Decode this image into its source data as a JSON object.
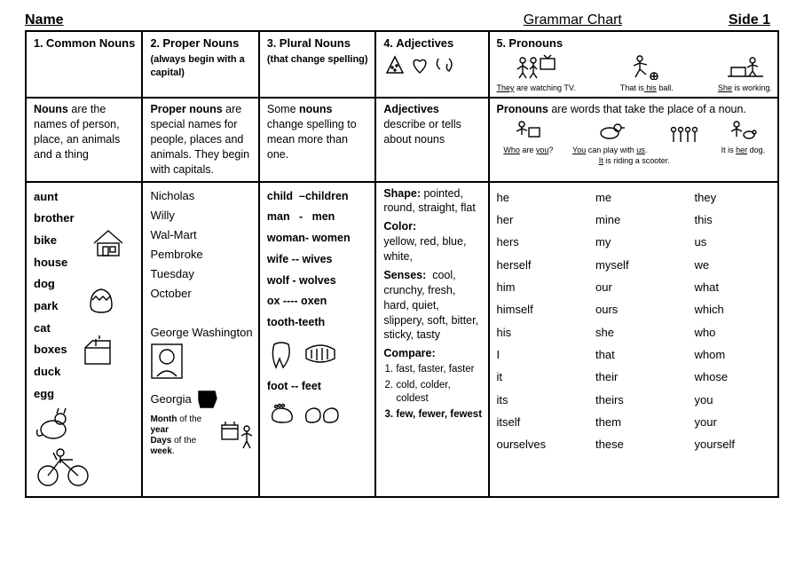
{
  "header": {
    "name_label": "Name",
    "center_title": "Grammar  Chart",
    "side_label": "Side 1"
  },
  "columns": [
    {
      "num": "1.",
      "title": "Common Nouns",
      "subtitle": "",
      "definition_html": "<b>Nouns</b> are the names of person, place, an animals and a thing"
    },
    {
      "num": "2.",
      "title": "Proper Nouns",
      "subtitle": "(always begin with a capital)",
      "definition_html": "<b>Proper nouns</b> are special names for people, places and animals.  They begin with capitals."
    },
    {
      "num": "3.",
      "title": "Plural Nouns",
      "subtitle": "(that change spelling)",
      "definition_html": "Some <b>nouns</b> change spelling to mean more than one."
    },
    {
      "num": "4.",
      "title": "Adjectives",
      "subtitle": "",
      "definition_html": "<b>Adjectives</b> describe or tells about nouns"
    },
    {
      "num": "5.",
      "title": "Pronouns",
      "subtitle": "",
      "definition_html": "<b>Pronouns</b> are words that take the place of a noun."
    }
  ],
  "common_nouns": [
    "aunt",
    "brother",
    "bike",
    "house",
    "dog",
    "park",
    "cat",
    "boxes",
    "duck",
    "egg"
  ],
  "proper_nouns": {
    "items": [
      "Nicholas",
      "Willy",
      "Wal-Mart",
      "Pembroke",
      "Tuesday",
      "October",
      "",
      "George Washington"
    ],
    "georgia": "Georgia",
    "month_caption_html": "<b>Month</b> of the <b>year</b><br><b>Days</b> of the <b>week</b>."
  },
  "plural_pairs": [
    "child  –children",
    "man   -   men",
    "woman- women",
    "wife -- wives",
    "wolf - wolves",
    "ox ---- oxen",
    "tooth-teeth"
  ],
  "plural_foot": "foot -- feet",
  "adjectives": {
    "shape": {
      "label": "Shape:",
      "text": "pointed, round, straight, flat"
    },
    "color": {
      "label": "Color:",
      "text": "yellow, red, blue, white,"
    },
    "senses": {
      "label": "Senses:",
      "text": "cool, crunchy, fresh, hard, quiet, slippery, soft, bitter, sticky, tasty"
    },
    "compare": {
      "label": "Compare:",
      "items": [
        "fast, faster, faster",
        "cold, colder, coldest",
        "few, fewer, fewest"
      ]
    }
  },
  "pronoun_captions": {
    "tv_html": "<u>They</u> are watching TV.",
    "ball_html": "That is<u> his</u> ball.",
    "work_html": "<u>She</u> is working.",
    "who_html": "<u>Who</u> are <u>you</u>?",
    "you_us_html": "<u>You</u> can play with <u>us</u>.",
    "it_scooter_html": "<u>It</u> is riding a scooter.",
    "it_dog_html": "It is <u>her</u> dog."
  },
  "pronoun_list": {
    "col1": [
      "he",
      "her",
      "hers",
      "herself",
      "him",
      "himself",
      "his",
      "I",
      "it",
      "its",
      "itself",
      "ourselves"
    ],
    "col2": [
      "me",
      "mine",
      "my",
      "myself",
      "our",
      "ours",
      "she",
      "that",
      "their",
      "theirs",
      "them",
      "these"
    ],
    "col3": [
      "they",
      "this",
      "us",
      "we",
      "what",
      "which",
      "who",
      "whom",
      "whose",
      "you",
      "your",
      "yourself"
    ]
  }
}
